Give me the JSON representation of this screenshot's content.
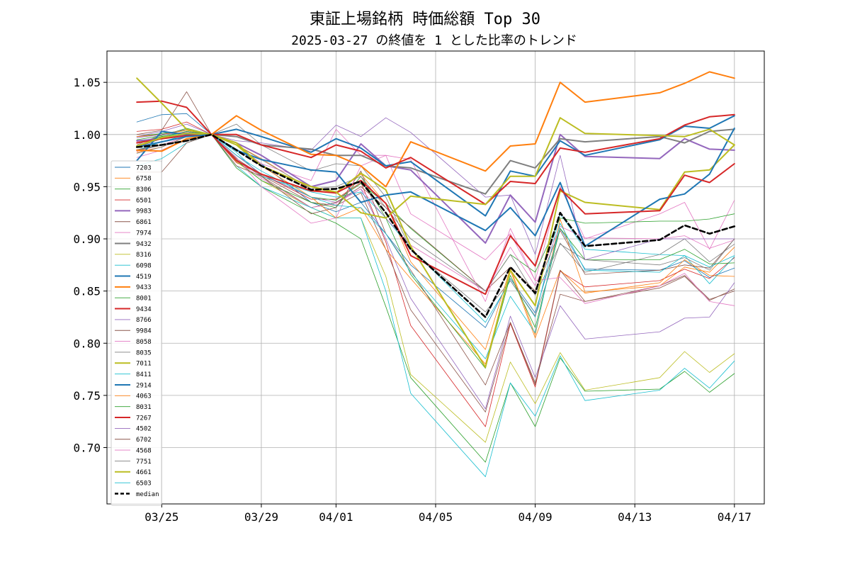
{
  "chart_data": {
    "type": "line",
    "title": "東証上場銘柄 時価総額 Top 30",
    "subtitle": "2025-03-27 の終値を 1 とした比率のトレンド",
    "xlabel": "",
    "ylabel": "",
    "x_ticks": [
      {
        "day": 2,
        "label": "03/25"
      },
      {
        "day": 6,
        "label": "03/29"
      },
      {
        "day": 9,
        "label": "04/01"
      },
      {
        "day": 13,
        "label": "04/05"
      },
      {
        "day": 17,
        "label": "04/09"
      },
      {
        "day": 21,
        "label": "04/13"
      },
      {
        "day": 25,
        "label": "04/17"
      }
    ],
    "xlim": [
      -0.2,
      26.2
    ],
    "ylim": [
      0.646,
      1.08
    ],
    "y_ticks": [
      0.7,
      0.75,
      0.8,
      0.85,
      0.9,
      0.95,
      1.0,
      1.05
    ],
    "y_tick_labels": [
      "0.70",
      "0.75",
      "0.80",
      "0.85",
      "0.90",
      "0.95",
      "1.00",
      "1.05"
    ],
    "grid": true,
    "legend_position": "lower-left",
    "x_days": [
      1,
      2,
      3,
      4,
      5,
      6,
      8,
      9,
      10,
      11,
      12,
      15,
      16,
      17,
      18,
      19,
      22,
      23,
      24,
      25
    ],
    "series": [
      {
        "name": "7203",
        "color": "#1f77b4",
        "width": 0.8,
        "values": [
          1.012,
          1.019,
          1.02,
          1.0,
          0.986,
          0.972,
          0.935,
          0.926,
          0.935,
          0.905,
          0.875,
          0.815,
          0.862,
          0.829,
          0.91,
          0.871,
          0.87,
          0.879,
          0.863,
          0.872
        ]
      },
      {
        "name": "6758",
        "color": "#ff7f0e",
        "width": 0.8,
        "values": [
          0.983,
          0.988,
          0.998,
          1.0,
          0.99,
          0.977,
          0.947,
          0.944,
          0.962,
          0.934,
          0.878,
          0.794,
          0.872,
          0.808,
          0.919,
          0.849,
          0.855,
          0.873,
          0.868,
          0.892
        ]
      },
      {
        "name": "8306",
        "color": "#2ca02c",
        "width": 0.8,
        "values": [
          0.995,
          0.999,
          1.006,
          1.0,
          0.968,
          0.95,
          0.925,
          0.915,
          0.9,
          0.835,
          0.767,
          0.686,
          0.762,
          0.72,
          0.786,
          0.754,
          0.756,
          0.773,
          0.753,
          0.771
        ]
      },
      {
        "name": "6501",
        "color": "#d62728",
        "width": 0.8,
        "values": [
          1.003,
          1.005,
          1.012,
          1.0,
          0.973,
          0.962,
          0.938,
          0.938,
          0.954,
          0.897,
          0.817,
          0.72,
          0.819,
          0.758,
          0.869,
          0.854,
          0.86,
          0.871,
          0.862,
          0.882
        ]
      },
      {
        "name": "9983",
        "color": "#9467bd",
        "width": 2.0,
        "values": [
          0.994,
          0.996,
          1.0,
          1.0,
          0.992,
          0.98,
          0.95,
          0.956,
          0.991,
          0.97,
          0.966,
          0.896,
          0.942,
          0.916,
          1.0,
          0.979,
          0.977,
          0.996,
          0.986,
          0.985
        ]
      },
      {
        "name": "6861",
        "color": "#8c564b",
        "width": 0.8,
        "values": [
          0.988,
          0.996,
          1.002,
          1.0,
          0.977,
          0.961,
          0.935,
          0.932,
          0.944,
          0.89,
          0.832,
          0.734,
          0.82,
          0.762,
          0.847,
          0.84,
          0.853,
          0.864,
          0.841,
          0.852
        ]
      },
      {
        "name": "7974",
        "color": "#e377c2",
        "width": 0.8,
        "values": [
          0.984,
          0.99,
          0.998,
          1.0,
          0.99,
          0.972,
          0.956,
          1.005,
          0.98,
          0.98,
          0.924,
          0.88,
          0.905,
          0.86,
          0.95,
          0.9,
          0.924,
          0.935,
          0.89,
          0.937
        ]
      },
      {
        "name": "9432",
        "color": "#7f7f7f",
        "width": 2.0,
        "values": [
          0.985,
          0.99,
          0.994,
          1.0,
          0.998,
          0.99,
          0.986,
          0.98,
          0.98,
          0.97,
          0.968,
          0.943,
          0.975,
          0.968,
          0.996,
          0.993,
          0.998,
          0.992,
          1.003,
          1.005
        ]
      },
      {
        "name": "8316",
        "color": "#bcbd22",
        "width": 0.8,
        "values": [
          0.993,
          0.996,
          1.002,
          1.0,
          0.974,
          0.956,
          0.93,
          0.92,
          0.92,
          0.864,
          0.77,
          0.705,
          0.782,
          0.742,
          0.791,
          0.755,
          0.767,
          0.792,
          0.772,
          0.79
        ]
      },
      {
        "name": "6098",
        "color": "#17becf",
        "width": 0.8,
        "values": [
          0.97,
          0.977,
          0.992,
          1.0,
          0.983,
          0.96,
          0.945,
          0.94,
          0.945,
          0.92,
          0.891,
          0.82,
          0.86,
          0.825,
          0.924,
          0.89,
          0.885,
          0.884,
          0.857,
          0.883
        ]
      },
      {
        "name": "4519",
        "color": "#1f77b4",
        "width": 2.0,
        "values": [
          0.975,
          1.003,
          1.0,
          1.0,
          1.005,
          0.998,
          0.983,
          0.996,
          0.987,
          0.97,
          0.974,
          0.922,
          0.965,
          0.96,
          0.994,
          0.98,
          0.995,
          1.008,
          1.006,
          1.018
        ]
      },
      {
        "name": "9433",
        "color": "#ff7f0e",
        "width": 2.0,
        "values": [
          0.985,
          0.984,
          0.996,
          1.0,
          1.018,
          1.004,
          0.981,
          0.98,
          0.97,
          0.95,
          0.993,
          0.965,
          0.989,
          0.991,
          1.05,
          1.031,
          1.04,
          1.049,
          1.06,
          1.054
        ]
      },
      {
        "name": "8001",
        "color": "#2ca02c",
        "width": 0.8,
        "values": [
          0.998,
          1.001,
          1.004,
          1.0,
          0.98,
          0.962,
          0.94,
          0.937,
          0.953,
          0.934,
          0.91,
          0.85,
          0.885,
          0.868,
          0.92,
          0.915,
          0.917,
          0.917,
          0.919,
          0.924
        ]
      },
      {
        "name": "9434",
        "color": "#d62728",
        "width": 2.0,
        "values": [
          0.992,
          0.996,
          0.999,
          1.0,
          1.0,
          0.99,
          0.978,
          0.99,
          0.984,
          0.968,
          0.978,
          0.933,
          0.955,
          0.953,
          0.987,
          0.983,
          0.996,
          1.009,
          1.017,
          1.019
        ]
      },
      {
        "name": "8766",
        "color": "#9467bd",
        "width": 0.8,
        "values": [
          0.998,
          1.003,
          1.01,
          1.0,
          0.98,
          0.962,
          0.94,
          0.935,
          0.948,
          0.9,
          0.843,
          0.737,
          0.826,
          0.767,
          0.836,
          0.804,
          0.811,
          0.824,
          0.825,
          0.858
        ]
      },
      {
        "name": "9984",
        "color": "#8c564b",
        "width": 0.8,
        "values": [
          1.0,
          1.004,
          1.041,
          1.0,
          0.976,
          0.96,
          0.93,
          0.935,
          0.95,
          0.93,
          0.911,
          0.85,
          0.873,
          0.85,
          0.908,
          0.866,
          0.87,
          0.875,
          0.872,
          0.9
        ]
      },
      {
        "name": "8058",
        "color": "#e377c2",
        "width": 0.8,
        "values": [
          0.993,
          0.998,
          1.0,
          1.0,
          0.975,
          0.958,
          0.93,
          0.934,
          0.948,
          0.92,
          0.894,
          0.85,
          0.892,
          0.855,
          0.912,
          0.901,
          0.9,
          0.903,
          0.891,
          0.899
        ]
      },
      {
        "name": "8035",
        "color": "#7f7f7f",
        "width": 0.8,
        "values": [
          0.99,
          1.0,
          1.005,
          1.0,
          1.01,
          0.99,
          0.965,
          0.972,
          0.97,
          0.94,
          0.89,
          0.83,
          0.86,
          0.826,
          0.896,
          0.868,
          0.885,
          0.9,
          0.878,
          0.895
        ]
      },
      {
        "name": "7011",
        "color": "#bcbd22",
        "width": 2.0,
        "values": [
          0.989,
          0.997,
          1.001,
          1.0,
          0.99,
          0.97,
          0.95,
          0.944,
          0.963,
          0.947,
          0.893,
          0.777,
          0.87,
          0.836,
          0.946,
          0.935,
          0.928,
          0.964,
          0.966,
          0.99
        ]
      },
      {
        "name": "8411",
        "color": "#17becf",
        "width": 0.8,
        "values": [
          0.992,
          0.997,
          1.003,
          1.0,
          0.97,
          0.95,
          0.93,
          0.92,
          0.92,
          0.85,
          0.752,
          0.672,
          0.762,
          0.73,
          0.788,
          0.745,
          0.755,
          0.776,
          0.757,
          0.783
        ]
      },
      {
        "name": "2914",
        "color": "#1f77b4",
        "width": 2.0,
        "values": [
          0.988,
          0.993,
          0.998,
          1.0,
          0.985,
          0.976,
          0.966,
          0.964,
          0.935,
          0.942,
          0.945,
          0.908,
          0.93,
          0.903,
          0.954,
          0.893,
          0.938,
          0.943,
          0.962,
          1.006
        ]
      },
      {
        "name": "4063",
        "color": "#ff7f0e",
        "width": 0.8,
        "values": [
          0.998,
          1.0,
          1.004,
          1.0,
          0.99,
          0.97,
          0.94,
          0.92,
          0.93,
          0.89,
          0.862,
          0.78,
          0.87,
          0.805,
          0.87,
          0.848,
          0.858,
          0.88,
          0.865,
          0.864
        ]
      },
      {
        "name": "8031",
        "color": "#2ca02c",
        "width": 0.8,
        "values": [
          0.992,
          0.998,
          1.003,
          1.0,
          0.975,
          0.956,
          0.935,
          0.93,
          0.96,
          0.92,
          0.866,
          0.776,
          0.865,
          0.815,
          0.91,
          0.88,
          0.88,
          0.89,
          0.876,
          0.877
        ]
      },
      {
        "name": "7267",
        "color": "#d62728",
        "width": 2.0,
        "values": [
          1.031,
          1.032,
          1.026,
          1.0,
          0.975,
          0.962,
          0.946,
          0.944,
          0.956,
          0.934,
          0.884,
          0.847,
          0.903,
          0.874,
          0.948,
          0.924,
          0.927,
          0.961,
          0.954,
          0.972
        ]
      },
      {
        "name": "4502",
        "color": "#9467bd",
        "width": 0.8,
        "values": [
          0.997,
          1.0,
          1.002,
          1.0,
          0.994,
          0.992,
          0.985,
          1.009,
          0.998,
          1.016,
          1.002,
          0.94,
          0.942,
          0.885,
          0.98,
          0.88,
          0.9,
          0.9,
          0.9,
          0.9
        ]
      },
      {
        "name": "6702",
        "color": "#8c564b",
        "width": 0.8,
        "values": [
          0.964,
          0.964,
          0.992,
          1.0,
          0.97,
          0.96,
          0.924,
          0.93,
          0.965,
          0.905,
          0.87,
          0.76,
          0.82,
          0.76,
          0.87,
          0.84,
          0.855,
          0.865,
          0.842,
          0.85
        ]
      },
      {
        "name": "4568",
        "color": "#e377c2",
        "width": 0.8,
        "values": [
          0.978,
          0.985,
          0.996,
          1.0,
          0.978,
          0.95,
          0.915,
          0.92,
          0.97,
          0.98,
          0.976,
          0.84,
          0.91,
          0.86,
          0.863,
          0.838,
          0.855,
          0.867,
          0.84,
          0.836
        ]
      },
      {
        "name": "7751",
        "color": "#7f7f7f",
        "width": 0.8,
        "values": [
          0.982,
          0.988,
          0.998,
          1.0,
          0.99,
          0.976,
          0.948,
          0.95,
          0.96,
          0.93,
          0.9,
          0.85,
          0.885,
          0.846,
          0.895,
          0.88,
          0.875,
          0.882,
          0.87,
          0.9
        ]
      },
      {
        "name": "4661",
        "color": "#bcbd22",
        "width": 2.0,
        "values": [
          1.054,
          1.03,
          1.005,
          1.0,
          0.992,
          0.97,
          0.95,
          0.945,
          0.925,
          0.92,
          0.941,
          0.933,
          0.96,
          0.96,
          1.016,
          1.001,
          0.999,
          0.998,
          1.005,
          0.99
        ]
      },
      {
        "name": "6503",
        "color": "#17becf",
        "width": 0.8,
        "values": [
          0.985,
          0.993,
          1.0,
          1.0,
          0.98,
          0.965,
          0.94,
          0.932,
          0.93,
          0.905,
          0.868,
          0.785,
          0.845,
          0.81,
          0.915,
          0.87,
          0.868,
          0.884,
          0.873,
          0.884
        ]
      },
      {
        "name": "median",
        "color": "#000000",
        "width": 2.6,
        "dashed": true,
        "values": [
          0.988,
          0.99,
          0.994,
          1.0,
          0.985,
          0.97,
          0.947,
          0.948,
          0.955,
          0.925,
          0.89,
          0.825,
          0.873,
          0.848,
          0.925,
          0.893,
          0.899,
          0.913,
          0.905,
          0.912
        ]
      }
    ]
  }
}
